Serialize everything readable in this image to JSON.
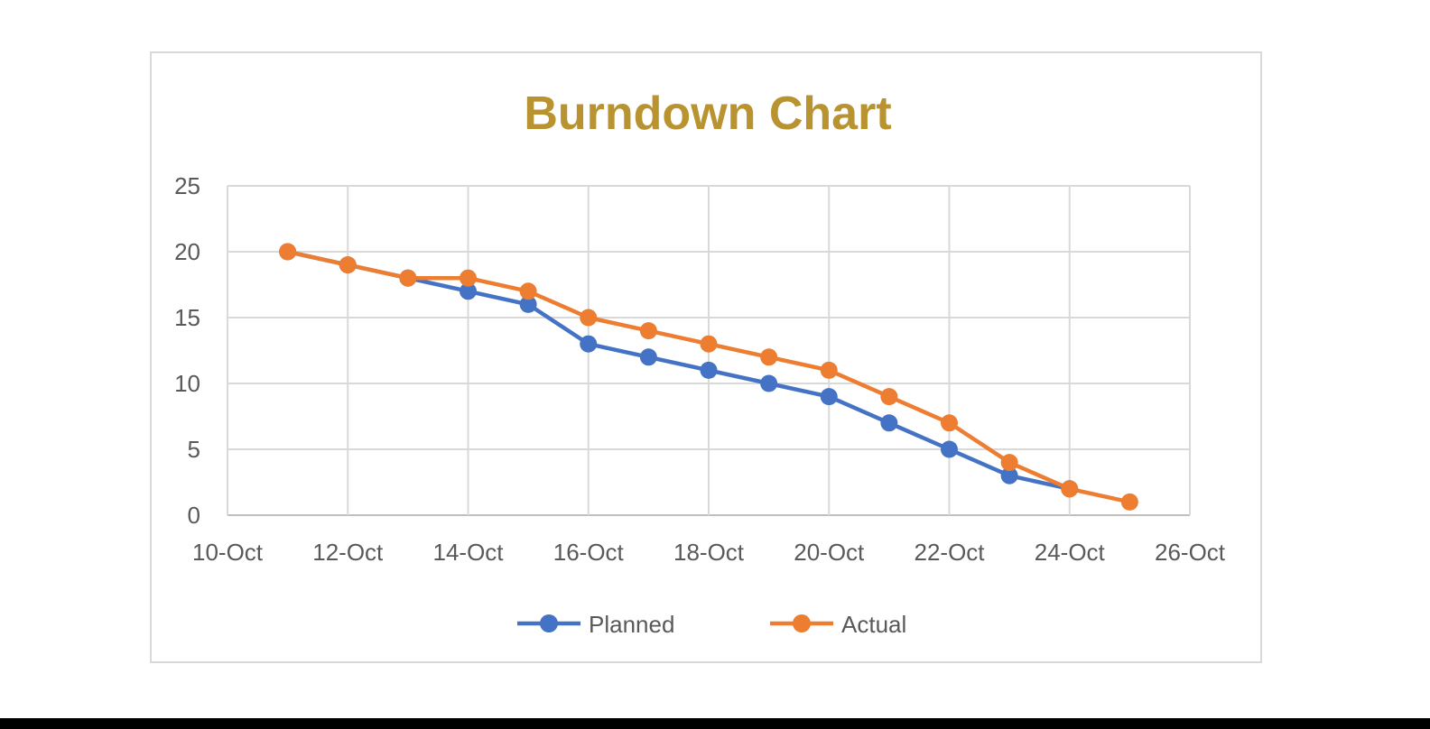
{
  "chart_data": {
    "type": "line",
    "title": "Burndown Chart",
    "xlabel": "",
    "ylabel": "",
    "x_axis_type": "date",
    "xlim": [
      "10-Oct",
      "26-Oct"
    ],
    "ylim": [
      0,
      25
    ],
    "x_ticks": [
      "10-Oct",
      "12-Oct",
      "14-Oct",
      "16-Oct",
      "18-Oct",
      "20-Oct",
      "22-Oct",
      "24-Oct",
      "26-Oct"
    ],
    "y_ticks": [
      "0",
      "5",
      "10",
      "15",
      "20",
      "25"
    ],
    "grid": true,
    "legend_position": "bottom",
    "series": [
      {
        "name": "Planned",
        "color": "#4472c4",
        "points": [
          {
            "x": "11-Oct",
            "y": 20
          },
          {
            "x": "12-Oct",
            "y": 19
          },
          {
            "x": "13-Oct",
            "y": 18
          },
          {
            "x": "14-Oct",
            "y": 17
          },
          {
            "x": "15-Oct",
            "y": 16
          },
          {
            "x": "16-Oct",
            "y": 13
          },
          {
            "x": "17-Oct",
            "y": 12
          },
          {
            "x": "18-Oct",
            "y": 11
          },
          {
            "x": "19-Oct",
            "y": 10
          },
          {
            "x": "20-Oct",
            "y": 9
          },
          {
            "x": "21-Oct",
            "y": 7
          },
          {
            "x": "22-Oct",
            "y": 5
          },
          {
            "x": "23-Oct",
            "y": 3
          },
          {
            "x": "24-Oct",
            "y": 2
          }
        ]
      },
      {
        "name": "Actual",
        "color": "#ed7d31",
        "points": [
          {
            "x": "11-Oct",
            "y": 20
          },
          {
            "x": "12-Oct",
            "y": 19
          },
          {
            "x": "13-Oct",
            "y": 18
          },
          {
            "x": "14-Oct",
            "y": 18
          },
          {
            "x": "15-Oct",
            "y": 17
          },
          {
            "x": "16-Oct",
            "y": 15
          },
          {
            "x": "17-Oct",
            "y": 14
          },
          {
            "x": "18-Oct",
            "y": 13
          },
          {
            "x": "19-Oct",
            "y": 12
          },
          {
            "x": "20-Oct",
            "y": 11
          },
          {
            "x": "21-Oct",
            "y": 9
          },
          {
            "x": "22-Oct",
            "y": 7
          },
          {
            "x": "23-Oct",
            "y": 4
          },
          {
            "x": "24-Oct",
            "y": 2
          },
          {
            "x": "25-Oct",
            "y": 1
          }
        ]
      }
    ],
    "colors": {
      "title": "#b8932f",
      "grid": "#d9d9d9",
      "tick_text": "#595959",
      "frame": "#d9d9d9"
    }
  }
}
